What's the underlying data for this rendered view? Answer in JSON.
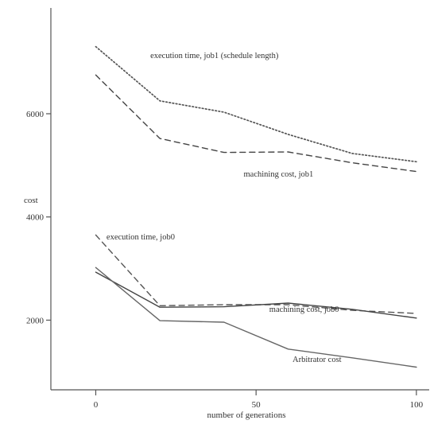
{
  "chart_data": {
    "type": "line",
    "xlabel": "number of generations",
    "ylabel": "cost",
    "xlim": [
      -14,
      104
    ],
    "ylim": [
      650,
      8050
    ],
    "xticks": [
      0,
      50,
      100
    ],
    "yticks": [
      2000,
      4000,
      6000
    ],
    "grid": false,
    "series": [
      {
        "key": "exec_job1",
        "x": [
          0,
          20,
          40,
          60,
          80,
          100
        ],
        "values": [
          7300,
          6250,
          6030,
          5600,
          5230,
          5070
        ],
        "style": "dotted",
        "color": "#555555"
      },
      {
        "key": "mach_job1",
        "x": [
          0,
          20,
          40,
          60,
          80,
          100
        ],
        "values": [
          6750,
          5520,
          5250,
          5260,
          5050,
          4880
        ],
        "style": "dashed",
        "color": "#444444"
      },
      {
        "key": "exec_job0",
        "x": [
          0,
          20,
          40,
          60,
          80,
          100
        ],
        "values": [
          3650,
          2280,
          2300,
          2300,
          2190,
          2130
        ],
        "style": "dashed",
        "color": "#555555"
      },
      {
        "key": "mach_job0",
        "x": [
          0,
          20,
          40,
          60,
          80,
          100
        ],
        "values": [
          2930,
          2250,
          2260,
          2330,
          2210,
          2040
        ],
        "style": "solid",
        "color": "#444444"
      },
      {
        "key": "arbitrator",
        "x": [
          0,
          20,
          40,
          60,
          80,
          100
        ],
        "values": [
          3020,
          1990,
          1960,
          1440,
          1270,
          1090
        ],
        "style": "solid",
        "color": "#666666"
      }
    ],
    "annotations": [
      {
        "text": "execution time, job1 (schedule length)",
        "x": 37,
        "y": 7080
      },
      {
        "text": "machining cost, job1",
        "x": 57,
        "y": 4780
      },
      {
        "text": "execution time, job0",
        "x": 14,
        "y": 3560
      },
      {
        "text": "machining cost, job0",
        "x": 65,
        "y": 2160
      },
      {
        "text": "Arbitrator cost",
        "x": 69,
        "y": 1190
      }
    ]
  }
}
